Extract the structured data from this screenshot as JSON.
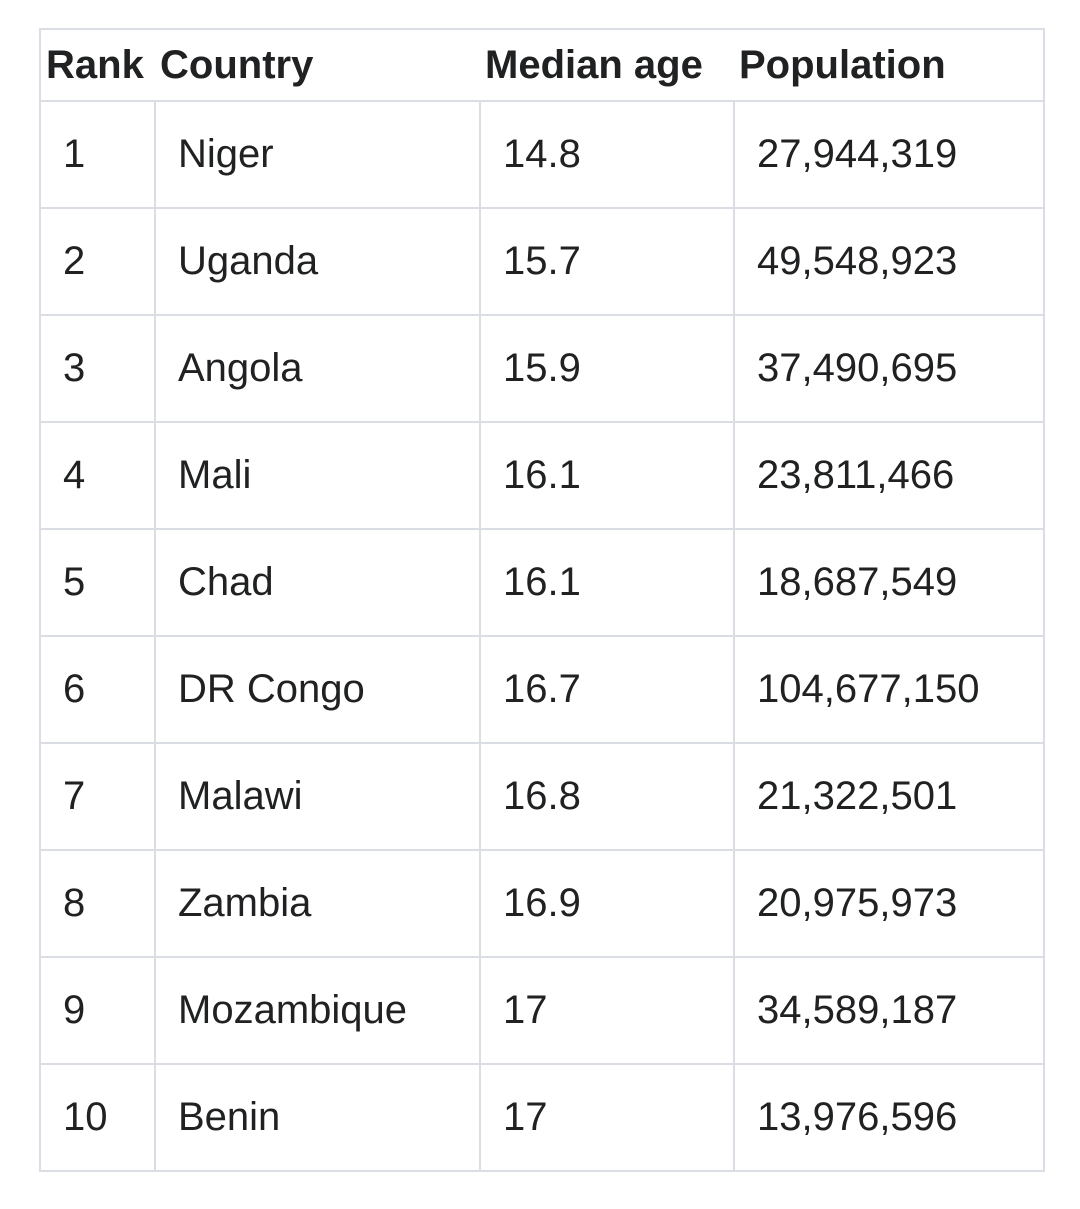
{
  "table": {
    "headers": [
      "Rank",
      "Country",
      "Median age",
      "Population"
    ],
    "rows": [
      {
        "rank": "1",
        "country": "Niger",
        "median_age": "14.8",
        "population": "27,944,319"
      },
      {
        "rank": "2",
        "country": "Uganda",
        "median_age": "15.7",
        "population": "49,548,923"
      },
      {
        "rank": "3",
        "country": "Angola",
        "median_age": "15.9",
        "population": "37,490,695"
      },
      {
        "rank": "4",
        "country": "Mali",
        "median_age": "16.1",
        "population": "23,811,466"
      },
      {
        "rank": "5",
        "country": "Chad",
        "median_age": "16.1",
        "population": "18,687,549"
      },
      {
        "rank": "6",
        "country": "DR Congo",
        "median_age": "16.7",
        "population": "104,677,150"
      },
      {
        "rank": "7",
        "country": "Malawi",
        "median_age": "16.8",
        "population": "21,322,501"
      },
      {
        "rank": "8",
        "country": "Zambia",
        "median_age": "16.9",
        "population": "20,975,973"
      },
      {
        "rank": "9",
        "country": "Mozambique",
        "median_age": "17",
        "population": "34,589,187"
      },
      {
        "rank": "10",
        "country": "Benin",
        "median_age": "17",
        "population": "13,976,596"
      }
    ]
  }
}
